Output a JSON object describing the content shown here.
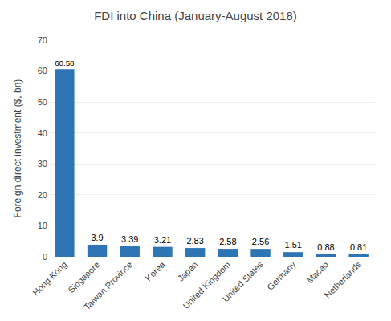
{
  "chart_data": {
    "type": "bar",
    "title": "FDI into China (January-August 2018)",
    "ylabel": "Foreign direct investment ($, bn)",
    "categories": [
      "Hong Kong",
      "Singapore",
      "Taiwan Province",
      "Korea",
      "Japan",
      "United Kingdom",
      "United States",
      "Germany",
      "Macao",
      "Netherlands"
    ],
    "values": [
      60.58,
      3.9,
      3.39,
      3.21,
      2.83,
      2.58,
      2.56,
      1.51,
      0.88,
      0.81
    ],
    "color": "#2E75B6",
    "ylim": [
      0,
      70
    ],
    "yticks": [
      0,
      10,
      20,
      30,
      40,
      50,
      60,
      70
    ],
    "grid": true,
    "data_labels": true
  }
}
